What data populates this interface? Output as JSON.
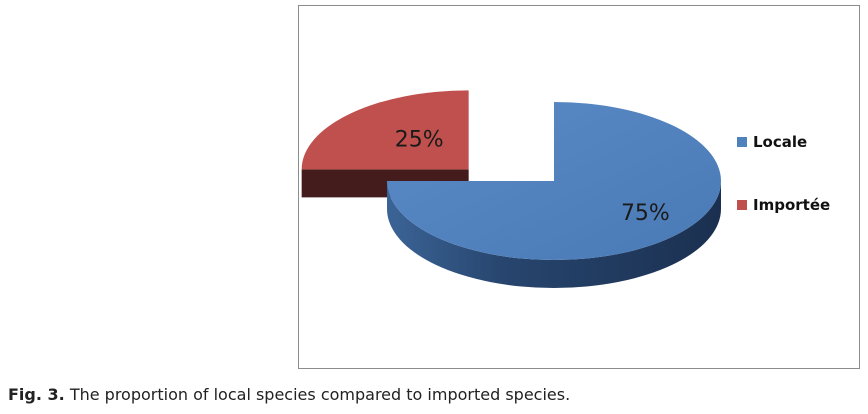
{
  "chart_data": {
    "type": "pie",
    "title": "",
    "categories": [
      "Locale",
      "Importée"
    ],
    "values": [
      75,
      25
    ],
    "labels": [
      "75%",
      "25%"
    ],
    "colors": [
      "#4f81bd",
      "#c0504d"
    ],
    "legend_placement": "right",
    "style": "3d-exploded"
  },
  "caption": {
    "label": "Fig. 3.",
    "text": " The proportion of local species compared to imported species."
  }
}
